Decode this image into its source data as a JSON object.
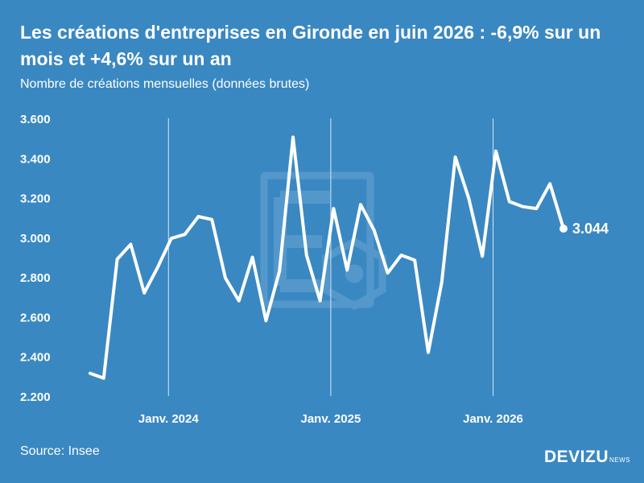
{
  "title": "Les créations d'entreprises en Gironde en juin 2026 : -6,9% sur un mois et +4,6% sur un an",
  "subtitle": "Nombre de créations mensuelles (données brutes)",
  "source": "Source: Insee",
  "brand": {
    "name": "DEVIZU",
    "sub": "NEWS"
  },
  "chart_data": {
    "type": "line",
    "title": "Les créations d'entreprises en Gironde en juin 2026 : -6,9% sur un mois et +4,6% sur un an",
    "ylabel": "Nombre de créations mensuelles (données brutes)",
    "ylim": [
      2200,
      3600
    ],
    "y_ticks": [
      "2.200",
      "2.400",
      "2.600",
      "2.800",
      "3.000",
      "3.200",
      "3.400",
      "3.600"
    ],
    "y_tick_values": [
      2200,
      2400,
      2600,
      2800,
      3000,
      3200,
      3400,
      3600
    ],
    "x_ticks": [
      "Janv. 2024",
      "Janv. 2025",
      "Janv. 2026"
    ],
    "x_tick_indices": [
      6,
      18,
      30
    ],
    "grid": "vertical lines at January",
    "x": [
      "2023-07",
      "2023-08",
      "2023-09",
      "2023-10",
      "2023-11",
      "2023-12",
      "2024-01",
      "2024-02",
      "2024-03",
      "2024-04",
      "2024-05",
      "2024-06",
      "2024-07",
      "2024-08",
      "2024-09",
      "2024-10",
      "2024-11",
      "2024-12",
      "2025-01",
      "2025-02",
      "2025-03",
      "2025-04",
      "2025-05",
      "2025-06",
      "2025-07",
      "2025-08",
      "2025-09",
      "2025-10",
      "2025-11",
      "2025-12",
      "2026-01",
      "2026-02",
      "2026-03",
      "2026-04",
      "2026-05",
      "2026-06"
    ],
    "series": [
      {
        "values": [
          2315,
          2290,
          2890,
          2965,
          2720,
          2850,
          2995,
          3015,
          3105,
          3090,
          2795,
          2680,
          2900,
          2580,
          2830,
          3505,
          2910,
          2680,
          3145,
          2835,
          3165,
          3035,
          2820,
          2910,
          2885,
          2420,
          2775,
          3405,
          3195,
          2905,
          3435,
          3180,
          3155,
          3145,
          3270,
          3044
        ],
        "color": "#ffffff"
      }
    ],
    "last_label": "3.044"
  }
}
